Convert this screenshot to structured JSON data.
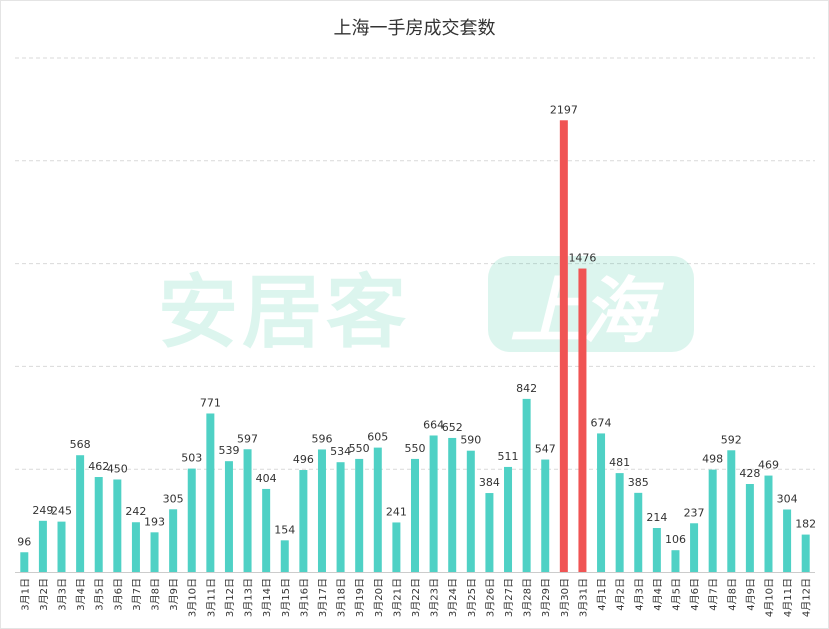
{
  "chart_data": {
    "type": "bar",
    "title": "上海一手房成交套数",
    "xlabel": "",
    "ylabel": "",
    "ylim": [
      0,
      2500
    ],
    "grid": true,
    "categories": [
      "3月1日",
      "3月2日",
      "3月3日",
      "3月4日",
      "3月5日",
      "3月6日",
      "3月7日",
      "3月8日",
      "3月9日",
      "3月10日",
      "3月11日",
      "3月12日",
      "3月13日",
      "3月14日",
      "3月15日",
      "3月16日",
      "3月17日",
      "3月18日",
      "3月19日",
      "3月20日",
      "3月21日",
      "3月22日",
      "3月23日",
      "3月24日",
      "3月25日",
      "3月26日",
      "3月27日",
      "3月28日",
      "3月29日",
      "3月30日",
      "3月31日",
      "4月1日",
      "4月2日",
      "4月3日",
      "4月4日",
      "4月5日",
      "4月6日",
      "4月7日",
      "4月8日",
      "4月9日",
      "4月10日",
      "4月11日",
      "4月12日"
    ],
    "values": [
      96,
      249,
      245,
      568,
      462,
      450,
      242,
      193,
      305,
      503,
      771,
      539,
      597,
      404,
      154,
      496,
      596,
      534,
      550,
      605,
      241,
      550,
      664,
      652,
      590,
      384,
      511,
      842,
      547,
      2197,
      1476,
      674,
      481,
      385,
      214,
      106,
      237,
      498,
      592,
      428,
      469,
      304,
      182
    ],
    "highlight": [
      "3月30日",
      "3月31日"
    ],
    "colors": {
      "bar": "#4fd1c5",
      "highlight": "#f05454",
      "grid": "#d9d9d9",
      "label": "#333333",
      "axis": "#cccccc"
    }
  },
  "watermark": {
    "text": "安居客",
    "badge": "上海"
  }
}
